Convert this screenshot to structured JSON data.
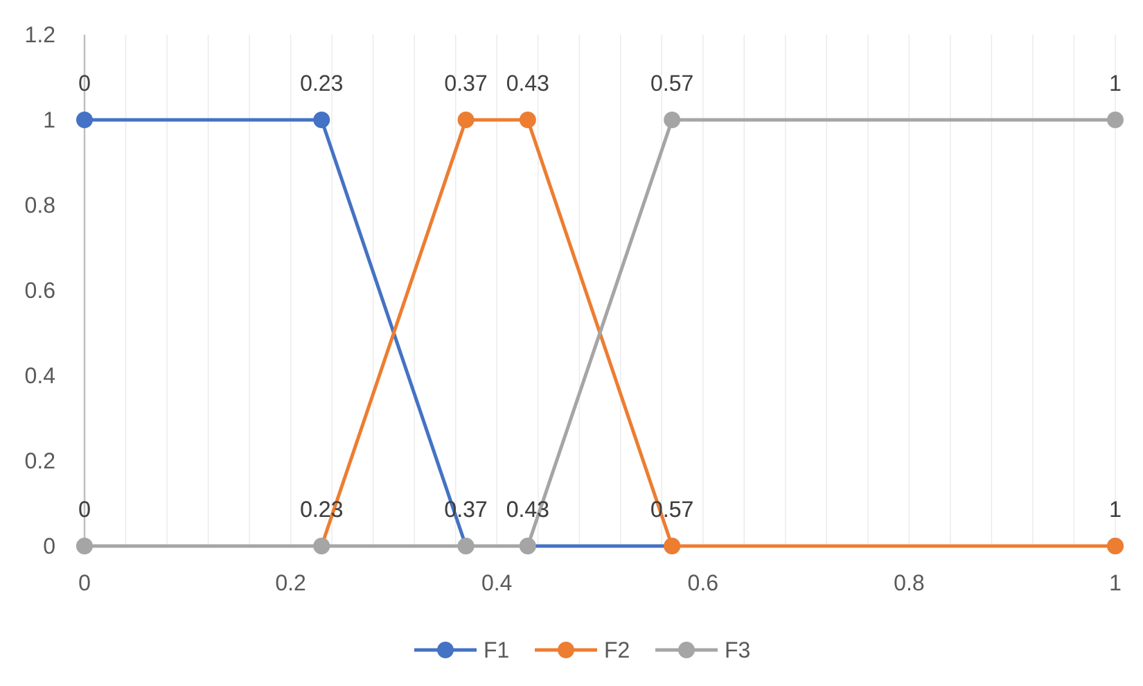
{
  "chart_data": {
    "type": "scatter",
    "title": "",
    "xlabel": "",
    "ylabel": "",
    "xlim": [
      0,
      1
    ],
    "ylim": [
      0,
      1.2
    ],
    "x_ticks": [
      0,
      0.2,
      0.4,
      0.6,
      0.8,
      1
    ],
    "x_tick_labels": [
      "0",
      "0.2",
      "0.4",
      "0.6",
      "0.8",
      "1"
    ],
    "y_ticks": [
      0,
      0.2,
      0.4,
      0.6,
      0.8,
      1,
      1.2
    ],
    "y_tick_labels": [
      "0",
      "0.2",
      "0.4",
      "0.6",
      "0.8",
      "1",
      "1.2"
    ],
    "minor_x_gridlines_step": 0.04,
    "grid": true,
    "legend_position": "bottom",
    "data_labels": "x values",
    "series": [
      {
        "name": "F1",
        "color": "#4472C4",
        "x": [
          0,
          0.23,
          0.37,
          0.43,
          0.57,
          1
        ],
        "y": [
          1,
          1,
          0,
          0,
          0,
          0
        ],
        "labels": [
          "0",
          "0.23",
          "0.37",
          "0.43",
          "0.57",
          "1"
        ]
      },
      {
        "name": "F2",
        "color": "#ED7D31",
        "x": [
          0,
          0.23,
          0.37,
          0.43,
          0.57,
          1
        ],
        "y": [
          0,
          0,
          1,
          1,
          0,
          0
        ],
        "labels": [
          "0",
          "0.23",
          "0.37",
          "0.43",
          "0.57",
          "1"
        ]
      },
      {
        "name": "F3",
        "color": "#A5A5A5",
        "x": [
          0,
          0.23,
          0.37,
          0.43,
          0.57,
          1
        ],
        "y": [
          0,
          0,
          0,
          0,
          1,
          1
        ],
        "labels": [
          "0",
          "0.23",
          "0.37",
          "0.43",
          "0.57",
          "1"
        ]
      }
    ]
  }
}
